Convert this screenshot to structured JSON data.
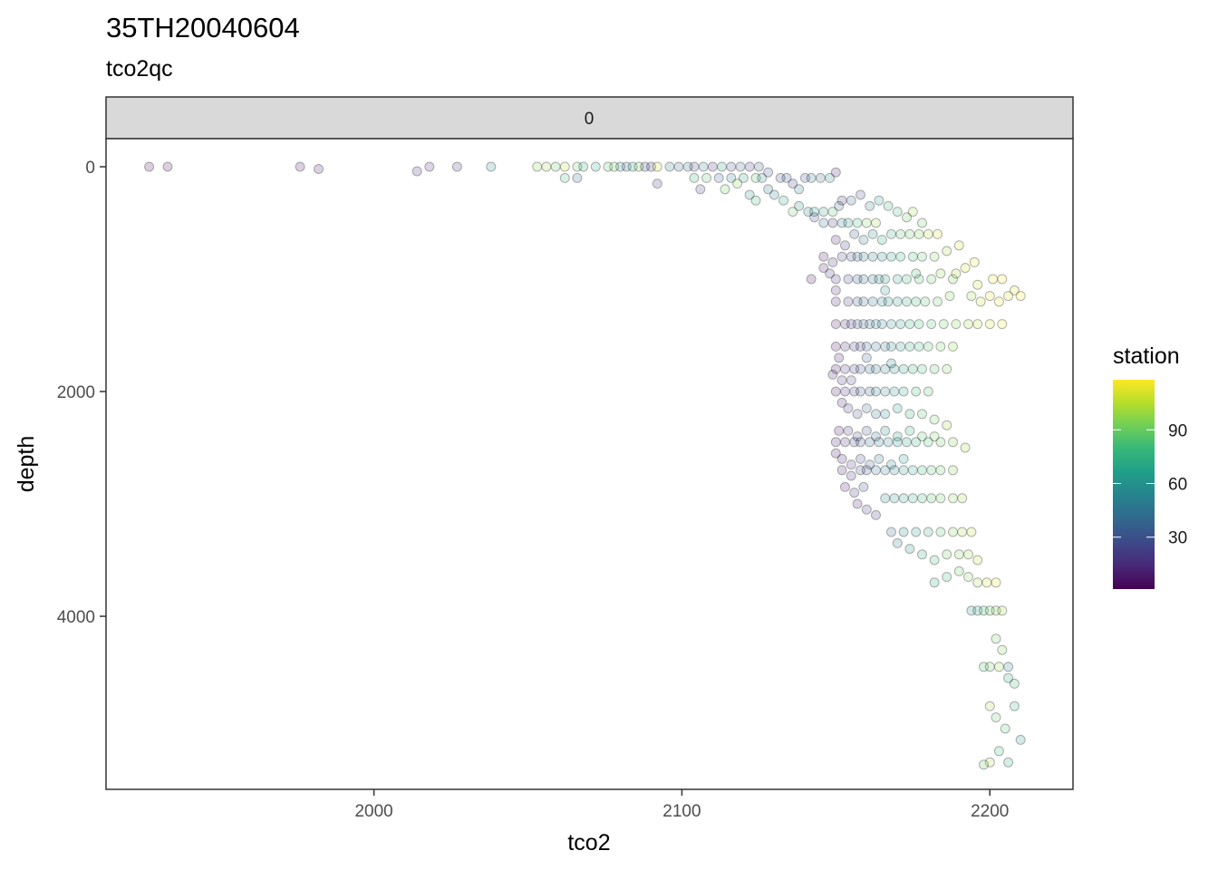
{
  "chart_data": {
    "type": "scatter",
    "title": "35TH20040604",
    "subtitle": "tco2qc",
    "facet_label": "0",
    "xlabel": "tco2",
    "ylabel": "depth",
    "xlim": [
      1913,
      2227
    ],
    "ylim": [
      -250,
      5540
    ],
    "y_reversed": true,
    "x_ticks": [
      2000,
      2100,
      2200
    ],
    "y_ticks": [
      0,
      2000,
      4000
    ],
    "grid": false,
    "legend": {
      "title": "station",
      "placement": "right",
      "range": [
        1,
        118
      ],
      "ticks": [
        30,
        60,
        90
      ],
      "colormap": [
        "#440154",
        "#482878",
        "#3e4989",
        "#31688e",
        "#26828e",
        "#1f9e89",
        "#35b779",
        "#6ece58",
        "#b5de2b",
        "#fde725"
      ]
    },
    "point_style": {
      "fill_opacity": 0.2,
      "stroke": "#000000",
      "stroke_opacity": 0.3
    },
    "points": [
      [
        1927,
        0,
        3
      ],
      [
        1933,
        0,
        5
      ],
      [
        1976,
        0,
        8
      ],
      [
        1982,
        20,
        10
      ],
      [
        2014,
        40,
        12
      ],
      [
        2018,
        0,
        14
      ],
      [
        2027,
        0,
        18
      ],
      [
        2038,
        0,
        60
      ],
      [
        2053,
        0,
        95
      ],
      [
        2056,
        0,
        100
      ],
      [
        2059,
        0,
        88
      ],
      [
        2062,
        0,
        105
      ],
      [
        2066,
        0,
        90
      ],
      [
        2068,
        0,
        75
      ],
      [
        2072,
        0,
        70
      ],
      [
        2062,
        100,
        80
      ],
      [
        2066,
        100,
        40
      ],
      [
        2076,
        0,
        85
      ],
      [
        2078,
        0,
        92
      ],
      [
        2080,
        0,
        60
      ],
      [
        2082,
        0,
        40
      ],
      [
        2084,
        0,
        70
      ],
      [
        2086,
        0,
        95
      ],
      [
        2088,
        0,
        30
      ],
      [
        2090,
        0,
        20
      ],
      [
        2092,
        0,
        110
      ],
      [
        2096,
        0,
        50
      ],
      [
        2099,
        0,
        35
      ],
      [
        2102,
        0,
        45
      ],
      [
        2104,
        0,
        25
      ],
      [
        2107,
        0,
        55
      ],
      [
        2110,
        0,
        15
      ],
      [
        2113,
        0,
        65
      ],
      [
        2116,
        0,
        30
      ],
      [
        2119,
        0,
        40
      ],
      [
        2122,
        0,
        20
      ],
      [
        2125,
        0,
        35
      ],
      [
        2092,
        150,
        15
      ],
      [
        2106,
        200,
        20
      ],
      [
        2112,
        100,
        40
      ],
      [
        2116,
        100,
        55
      ],
      [
        2120,
        100,
        70
      ],
      [
        2124,
        100,
        85
      ],
      [
        2126,
        100,
        60
      ],
      [
        2128,
        50,
        30
      ],
      [
        2104,
        100,
        75
      ],
      [
        2108,
        100,
        85
      ],
      [
        2114,
        200,
        90
      ],
      [
        2118,
        150,
        95
      ],
      [
        2122,
        250,
        60
      ],
      [
        2124,
        300,
        80
      ],
      [
        2128,
        200,
        45
      ],
      [
        2130,
        250,
        55
      ],
      [
        2132,
        100,
        25
      ],
      [
        2134,
        100,
        35
      ],
      [
        2136,
        150,
        20
      ],
      [
        2138,
        200,
        50
      ],
      [
        2140,
        100,
        30
      ],
      [
        2142,
        100,
        45
      ],
      [
        2145,
        100,
        40
      ],
      [
        2148,
        100,
        60
      ],
      [
        2150,
        50,
        10
      ],
      [
        2133,
        300,
        70
      ],
      [
        2136,
        400,
        90
      ],
      [
        2138,
        350,
        60
      ],
      [
        2141,
        400,
        50
      ],
      [
        2143,
        400,
        65
      ],
      [
        2146,
        400,
        70
      ],
      [
        2149,
        400,
        85
      ],
      [
        2151,
        350,
        40
      ],
      [
        2143,
        450,
        30
      ],
      [
        2146,
        500,
        45
      ],
      [
        2149,
        500,
        20
      ],
      [
        2152,
        500,
        55
      ],
      [
        2154,
        500,
        60
      ],
      [
        2157,
        500,
        80
      ],
      [
        2160,
        500,
        95
      ],
      [
        2163,
        500,
        100
      ],
      [
        2152,
        300,
        15
      ],
      [
        2155,
        300,
        40
      ],
      [
        2158,
        250,
        30
      ],
      [
        2161,
        350,
        50
      ],
      [
        2164,
        300,
        65
      ],
      [
        2167,
        350,
        75
      ],
      [
        2170,
        400,
        80
      ],
      [
        2173,
        450,
        90
      ],
      [
        2150,
        650,
        10
      ],
      [
        2153,
        700,
        20
      ],
      [
        2156,
        600,
        35
      ],
      [
        2159,
        650,
        50
      ],
      [
        2162,
        600,
        60
      ],
      [
        2165,
        650,
        70
      ],
      [
        2168,
        600,
        75
      ],
      [
        2171,
        600,
        85
      ],
      [
        2174,
        600,
        90
      ],
      [
        2177,
        600,
        95
      ],
      [
        2180,
        600,
        105
      ],
      [
        2183,
        600,
        110
      ],
      [
        2175,
        400,
        100
      ],
      [
        2178,
        500,
        90
      ],
      [
        2146,
        800,
        8
      ],
      [
        2149,
        850,
        15
      ],
      [
        2152,
        800,
        22
      ],
      [
        2155,
        800,
        30
      ],
      [
        2157,
        800,
        38
      ],
      [
        2159,
        800,
        42
      ],
      [
        2162,
        800,
        50
      ],
      [
        2165,
        800,
        55
      ],
      [
        2168,
        800,
        65
      ],
      [
        2171,
        800,
        72
      ],
      [
        2175,
        800,
        80
      ],
      [
        2178,
        800,
        88
      ],
      [
        2182,
        800,
        95
      ],
      [
        2186,
        750,
        100
      ],
      [
        2190,
        700,
        110
      ],
      [
        2142,
        1000,
        5
      ],
      [
        2150,
        1000,
        15
      ],
      [
        2154,
        1000,
        25
      ],
      [
        2157,
        1000,
        32
      ],
      [
        2159,
        1000,
        40
      ],
      [
        2162,
        1000,
        48
      ],
      [
        2164,
        1000,
        55
      ],
      [
        2166,
        1000,
        60
      ],
      [
        2170,
        1000,
        70
      ],
      [
        2173,
        1000,
        78
      ],
      [
        2177,
        1000,
        85
      ],
      [
        2181,
        1000,
        90
      ],
      [
        2188,
        1000,
        95
      ],
      [
        2192,
        900,
        110
      ],
      [
        2195,
        850,
        115
      ],
      [
        2201,
        1000,
        115
      ],
      [
        2204,
        1000,
        118
      ],
      [
        2146,
        900,
        10
      ],
      [
        2148,
        950,
        20
      ],
      [
        2150,
        1100,
        12
      ],
      [
        2166,
        1100,
        62
      ],
      [
        2176,
        950,
        82
      ],
      [
        2184,
        950,
        98
      ],
      [
        2189,
        950,
        102
      ],
      [
        2196,
        1050,
        108
      ],
      [
        2150,
        1200,
        10
      ],
      [
        2154,
        1200,
        20
      ],
      [
        2157,
        1200,
        30
      ],
      [
        2159,
        1200,
        40
      ],
      [
        2162,
        1200,
        45
      ],
      [
        2165,
        1200,
        55
      ],
      [
        2167,
        1200,
        60
      ],
      [
        2170,
        1200,
        65
      ],
      [
        2173,
        1200,
        72
      ],
      [
        2176,
        1200,
        78
      ],
      [
        2179,
        1200,
        85
      ],
      [
        2183,
        1200,
        90
      ],
      [
        2187,
        1150,
        95
      ],
      [
        2194,
        1150,
        100
      ],
      [
        2197,
        1200,
        108
      ],
      [
        2200,
        1150,
        112
      ],
      [
        2203,
        1200,
        115
      ],
      [
        2206,
        1150,
        112
      ],
      [
        2208,
        1100,
        110
      ],
      [
        2210,
        1150,
        118
      ],
      [
        2150,
        1400,
        5
      ],
      [
        2153,
        1400,
        12
      ],
      [
        2155,
        1400,
        20
      ],
      [
        2157,
        1400,
        28
      ],
      [
        2159,
        1400,
        35
      ],
      [
        2161,
        1400,
        42
      ],
      [
        2163,
        1400,
        48
      ],
      [
        2165,
        1400,
        55
      ],
      [
        2168,
        1400,
        60
      ],
      [
        2171,
        1400,
        65
      ],
      [
        2174,
        1400,
        72
      ],
      [
        2177,
        1400,
        78
      ],
      [
        2181,
        1400,
        85
      ],
      [
        2185,
        1400,
        90
      ],
      [
        2189,
        1400,
        95
      ],
      [
        2193,
        1400,
        100
      ],
      [
        2196,
        1400,
        105
      ],
      [
        2200,
        1400,
        110
      ],
      [
        2204,
        1400,
        115
      ],
      [
        2150,
        1600,
        5
      ],
      [
        2153,
        1600,
        12
      ],
      [
        2156,
        1600,
        20
      ],
      [
        2158,
        1600,
        28
      ],
      [
        2160,
        1600,
        35
      ],
      [
        2163,
        1600,
        42
      ],
      [
        2166,
        1600,
        50
      ],
      [
        2168,
        1600,
        55
      ],
      [
        2171,
        1600,
        62
      ],
      [
        2174,
        1600,
        70
      ],
      [
        2177,
        1600,
        78
      ],
      [
        2180,
        1600,
        85
      ],
      [
        2184,
        1600,
        92
      ],
      [
        2188,
        1600,
        98
      ],
      [
        2150,
        1800,
        5
      ],
      [
        2153,
        1800,
        15
      ],
      [
        2156,
        1800,
        22
      ],
      [
        2158,
        1800,
        30
      ],
      [
        2161,
        1800,
        38
      ],
      [
        2163,
        1800,
        45
      ],
      [
        2166,
        1800,
        52
      ],
      [
        2169,
        1800,
        60
      ],
      [
        2172,
        1800,
        68
      ],
      [
        2175,
        1800,
        75
      ],
      [
        2178,
        1800,
        82
      ],
      [
        2182,
        1800,
        88
      ],
      [
        2186,
        1800,
        95
      ],
      [
        2151,
        1700,
        8
      ],
      [
        2149,
        1850,
        10
      ],
      [
        2152,
        1900,
        15
      ],
      [
        2155,
        1900,
        25
      ],
      [
        2160,
        1700,
        40
      ],
      [
        2168,
        1750,
        55
      ],
      [
        2150,
        2000,
        5
      ],
      [
        2153,
        2000,
        12
      ],
      [
        2156,
        2000,
        22
      ],
      [
        2158,
        2000,
        30
      ],
      [
        2161,
        2000,
        38
      ],
      [
        2163,
        2000,
        45
      ],
      [
        2166,
        2000,
        52
      ],
      [
        2169,
        2000,
        60
      ],
      [
        2172,
        2000,
        68
      ],
      [
        2176,
        2000,
        78
      ],
      [
        2180,
        2000,
        88
      ],
      [
        2152,
        2100,
        10
      ],
      [
        2154,
        2150,
        20
      ],
      [
        2157,
        2200,
        30
      ],
      [
        2160,
        2150,
        40
      ],
      [
        2163,
        2200,
        48
      ],
      [
        2166,
        2200,
        55
      ],
      [
        2170,
        2150,
        65
      ],
      [
        2174,
        2200,
        75
      ],
      [
        2178,
        2200,
        85
      ],
      [
        2182,
        2250,
        92
      ],
      [
        2186,
        2300,
        100
      ],
      [
        2151,
        2350,
        5
      ],
      [
        2154,
        2350,
        15
      ],
      [
        2157,
        2400,
        25
      ],
      [
        2160,
        2350,
        35
      ],
      [
        2163,
        2400,
        45
      ],
      [
        2166,
        2350,
        55
      ],
      [
        2170,
        2400,
        65
      ],
      [
        2174,
        2350,
        75
      ],
      [
        2178,
        2400,
        85
      ],
      [
        2182,
        2400,
        95
      ],
      [
        2150,
        2450,
        5
      ],
      [
        2153,
        2450,
        12
      ],
      [
        2156,
        2450,
        22
      ],
      [
        2158,
        2450,
        30
      ],
      [
        2161,
        2450,
        38
      ],
      [
        2164,
        2450,
        45
      ],
      [
        2167,
        2450,
        52
      ],
      [
        2170,
        2450,
        60
      ],
      [
        2173,
        2450,
        68
      ],
      [
        2176,
        2450,
        75
      ],
      [
        2180,
        2450,
        82
      ],
      [
        2184,
        2450,
        90
      ],
      [
        2188,
        2450,
        95
      ],
      [
        2192,
        2500,
        100
      ],
      [
        2150,
        2550,
        5
      ],
      [
        2152,
        2600,
        10
      ],
      [
        2155,
        2650,
        15
      ],
      [
        2158,
        2600,
        25
      ],
      [
        2161,
        2650,
        35
      ],
      [
        2164,
        2600,
        45
      ],
      [
        2168,
        2650,
        55
      ],
      [
        2172,
        2600,
        65
      ],
      [
        2152,
        2700,
        8
      ],
      [
        2155,
        2750,
        15
      ],
      [
        2158,
        2700,
        25
      ],
      [
        2160,
        2700,
        32
      ],
      [
        2163,
        2700,
        40
      ],
      [
        2166,
        2700,
        48
      ],
      [
        2169,
        2700,
        55
      ],
      [
        2172,
        2700,
        62
      ],
      [
        2175,
        2700,
        70
      ],
      [
        2178,
        2700,
        78
      ],
      [
        2181,
        2700,
        85
      ],
      [
        2184,
        2700,
        90
      ],
      [
        2188,
        2700,
        95
      ],
      [
        2153,
        2850,
        8
      ],
      [
        2156,
        2900,
        15
      ],
      [
        2159,
        2850,
        25
      ],
      [
        2157,
        3000,
        10
      ],
      [
        2160,
        3050,
        20
      ],
      [
        2163,
        3100,
        15
      ],
      [
        2166,
        2950,
        50
      ],
      [
        2169,
        2950,
        58
      ],
      [
        2172,
        2950,
        62
      ],
      [
        2175,
        2950,
        70
      ],
      [
        2178,
        2950,
        78
      ],
      [
        2181,
        2950,
        85
      ],
      [
        2184,
        2950,
        90
      ],
      [
        2188,
        2950,
        95
      ],
      [
        2191,
        2950,
        100
      ],
      [
        2168,
        3250,
        40
      ],
      [
        2172,
        3250,
        55
      ],
      [
        2176,
        3250,
        65
      ],
      [
        2180,
        3250,
        75
      ],
      [
        2184,
        3250,
        85
      ],
      [
        2188,
        3250,
        95
      ],
      [
        2191,
        3250,
        100
      ],
      [
        2194,
        3250,
        105
      ],
      [
        2170,
        3350,
        50
      ],
      [
        2174,
        3400,
        60
      ],
      [
        2178,
        3450,
        70
      ],
      [
        2182,
        3500,
        80
      ],
      [
        2186,
        3450,
        90
      ],
      [
        2190,
        3450,
        95
      ],
      [
        2193,
        3450,
        100
      ],
      [
        2196,
        3500,
        105
      ],
      [
        2182,
        3700,
        70
      ],
      [
        2186,
        3650,
        80
      ],
      [
        2190,
        3600,
        90
      ],
      [
        2193,
        3650,
        95
      ],
      [
        2196,
        3700,
        100
      ],
      [
        2199,
        3700,
        110
      ],
      [
        2202,
        3700,
        115
      ],
      [
        2194,
        3950,
        60
      ],
      [
        2196,
        3950,
        70
      ],
      [
        2198,
        3950,
        80
      ],
      [
        2200,
        3950,
        90
      ],
      [
        2202,
        3950,
        95
      ],
      [
        2204,
        3950,
        100
      ],
      [
        2202,
        4200,
        90
      ],
      [
        2204,
        4300,
        95
      ],
      [
        2206,
        4450,
        50
      ],
      [
        2198,
        4450,
        85
      ],
      [
        2200,
        4450,
        90
      ],
      [
        2203,
        4450,
        100
      ],
      [
        2206,
        4550,
        70
      ],
      [
        2208,
        4600,
        80
      ],
      [
        2200,
        4800,
        100
      ],
      [
        2202,
        4900,
        90
      ],
      [
        2205,
        5000,
        85
      ],
      [
        2208,
        4800,
        75
      ],
      [
        2210,
        5100,
        60
      ],
      [
        2203,
        5200,
        80
      ],
      [
        2200,
        5300,
        100
      ],
      [
        2198,
        5320,
        90
      ],
      [
        2206,
        5300,
        70
      ]
    ]
  }
}
